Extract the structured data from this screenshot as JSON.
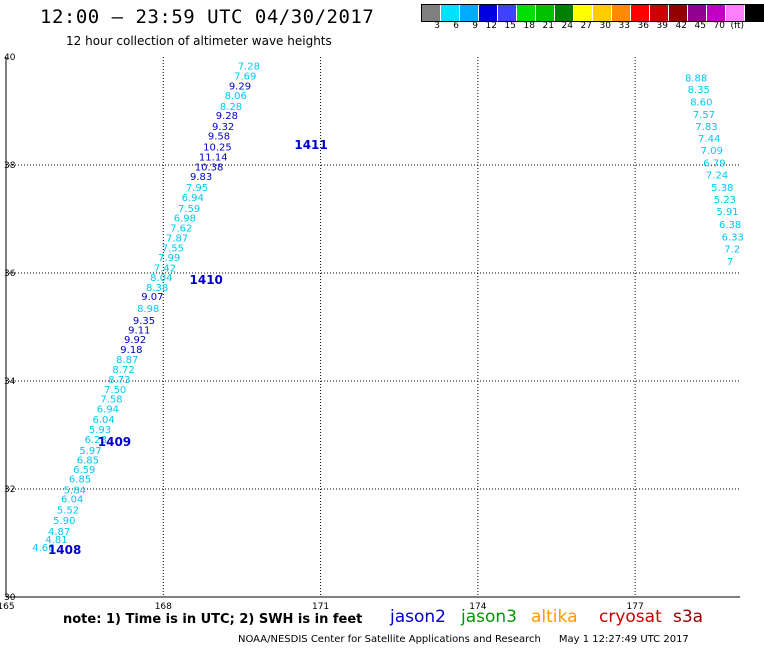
{
  "header": {
    "title": "12:00 – 23:59 UTC 04/30/2017",
    "subtitle": "12 hour collection of altimeter wave heights"
  },
  "legend": {
    "colors": [
      "#808080",
      "#00e0ff",
      "#00aaff",
      "#0000e0",
      "#4040ff",
      "#00e000",
      "#00c000",
      "#008000",
      "#ffff00",
      "#ffcc00",
      "#ff8c00",
      "#ff0000",
      "#d00000",
      "#900000",
      "#900090",
      "#c000c0",
      "#ff80ff",
      "#000000"
    ],
    "labels": [
      "3",
      "6",
      "9",
      "12",
      "15",
      "18",
      "21",
      "24",
      "27",
      "30",
      "33",
      "36",
      "39",
      "42",
      "45",
      "70",
      "(ft)"
    ]
  },
  "chart_data": {
    "type": "map",
    "x_ticks": [
      "165",
      "168",
      "171",
      "174",
      "177"
    ],
    "y_ticks": [
      "30",
      "32",
      "34",
      "36",
      "38",
      "40"
    ],
    "xlim": [
      165,
      179
    ],
    "ylim": [
      30,
      40
    ],
    "passes": [
      {
        "time": "1408",
        "lon": 165.8,
        "lat": 30.8
      },
      {
        "time": "1409",
        "lon": 166.75,
        "lat": 32.8
      },
      {
        "time": "1410",
        "lon": 168.5,
        "lat": 35.8
      },
      {
        "time": "1411",
        "lon": 170.5,
        "lat": 38.3
      }
    ],
    "track1": [
      {
        "lon": 165.5,
        "lat": 30.85,
        "v": "4.66"
      },
      {
        "lon": 165.75,
        "lat": 31.0,
        "v": "4.81"
      },
      {
        "lon": 165.8,
        "lat": 31.15,
        "v": "4.87"
      },
      {
        "lon": 165.9,
        "lat": 31.35,
        "v": "5.90"
      },
      {
        "lon": 165.97,
        "lat": 31.55,
        "v": "5.52"
      },
      {
        "lon": 166.05,
        "lat": 31.75,
        "v": "6.04"
      },
      {
        "lon": 166.1,
        "lat": 31.92,
        "v": "5.84"
      },
      {
        "lon": 166.2,
        "lat": 32.12,
        "v": "6.85"
      },
      {
        "lon": 166.28,
        "lat": 32.3,
        "v": "6.59"
      },
      {
        "lon": 166.35,
        "lat": 32.47,
        "v": "6.85"
      },
      {
        "lon": 166.4,
        "lat": 32.65,
        "v": "5.97"
      },
      {
        "lon": 166.5,
        "lat": 32.85,
        "v": "6.28"
      },
      {
        "lon": 166.58,
        "lat": 33.04,
        "v": "5.93"
      },
      {
        "lon": 166.65,
        "lat": 33.22,
        "v": "6.04"
      },
      {
        "lon": 166.73,
        "lat": 33.42,
        "v": "6.94"
      },
      {
        "lon": 166.8,
        "lat": 33.6,
        "v": "7.58"
      },
      {
        "lon": 166.87,
        "lat": 33.78,
        "v": "7.50"
      },
      {
        "lon": 166.95,
        "lat": 33.96,
        "v": "8.73"
      },
      {
        "lon": 167.03,
        "lat": 34.15,
        "v": "8.72"
      },
      {
        "lon": 167.1,
        "lat": 34.33,
        "v": "8.87"
      },
      {
        "lon": 167.18,
        "lat": 34.52,
        "v": "9.18"
      },
      {
        "lon": 167.25,
        "lat": 34.7,
        "v": "9.92"
      },
      {
        "lon": 167.33,
        "lat": 34.88,
        "v": "9.11"
      },
      {
        "lon": 167.42,
        "lat": 35.06,
        "v": "9.35"
      },
      {
        "lon": 167.5,
        "lat": 35.28,
        "v": "8.98"
      },
      {
        "lon": 167.58,
        "lat": 35.5,
        "v": "9.07"
      },
      {
        "lon": 167.67,
        "lat": 35.67,
        "v": "8.38"
      },
      {
        "lon": 167.75,
        "lat": 35.85,
        "v": "8.04"
      },
      {
        "lon": 167.82,
        "lat": 36.03,
        "v": "7.42"
      },
      {
        "lon": 167.9,
        "lat": 36.22,
        "v": "7.99"
      },
      {
        "lon": 167.97,
        "lat": 36.4,
        "v": "7.55"
      },
      {
        "lon": 168.05,
        "lat": 36.58,
        "v": "7.87"
      },
      {
        "lon": 168.13,
        "lat": 36.77,
        "v": "7.62"
      },
      {
        "lon": 168.2,
        "lat": 36.95,
        "v": "6.98"
      },
      {
        "lon": 168.28,
        "lat": 37.13,
        "v": "7.59"
      },
      {
        "lon": 168.35,
        "lat": 37.33,
        "v": "6.94"
      },
      {
        "lon": 168.43,
        "lat": 37.52,
        "v": "7.95"
      },
      {
        "lon": 168.51,
        "lat": 37.72,
        "v": "9.83"
      },
      {
        "lon": 168.6,
        "lat": 37.9,
        "v": "10.38"
      },
      {
        "lon": 168.68,
        "lat": 38.08,
        "v": "11.14"
      },
      {
        "lon": 168.76,
        "lat": 38.27,
        "v": "10.25"
      },
      {
        "lon": 168.85,
        "lat": 38.47,
        "v": "9.58"
      },
      {
        "lon": 168.93,
        "lat": 38.65,
        "v": "9.32"
      },
      {
        "lon": 169.0,
        "lat": 38.85,
        "v": "9.28"
      },
      {
        "lon": 169.08,
        "lat": 39.02,
        "v": "8.28"
      },
      {
        "lon": 169.17,
        "lat": 39.22,
        "v": "8.06"
      },
      {
        "lon": 169.25,
        "lat": 39.4,
        "v": "9.29"
      },
      {
        "lon": 169.35,
        "lat": 39.58,
        "v": "7.69"
      },
      {
        "lon": 169.42,
        "lat": 39.77,
        "v": "7.28"
      }
    ],
    "track2": [
      {
        "lon": 177.95,
        "lat": 39.55,
        "v": "8.88"
      },
      {
        "lon": 178.0,
        "lat": 39.33,
        "v": "8.35"
      },
      {
        "lon": 178.05,
        "lat": 39.1,
        "v": "8.60"
      },
      {
        "lon": 178.1,
        "lat": 38.87,
        "v": "7.57"
      },
      {
        "lon": 178.15,
        "lat": 38.65,
        "v": "7.83"
      },
      {
        "lon": 178.2,
        "lat": 38.43,
        "v": "7.44"
      },
      {
        "lon": 178.25,
        "lat": 38.2,
        "v": "7.09"
      },
      {
        "lon": 178.3,
        "lat": 37.97,
        "v": "6.79"
      },
      {
        "lon": 178.35,
        "lat": 37.75,
        "v": "7.24"
      },
      {
        "lon": 178.45,
        "lat": 37.52,
        "v": "5.38"
      },
      {
        "lon": 178.5,
        "lat": 37.3,
        "v": "5.23"
      },
      {
        "lon": 178.55,
        "lat": 37.07,
        "v": "5.91"
      },
      {
        "lon": 178.6,
        "lat": 36.83,
        "v": "6.38"
      },
      {
        "lon": 178.65,
        "lat": 36.6,
        "v": "6.33"
      },
      {
        "lon": 178.7,
        "lat": 36.38,
        "v": "7.2"
      },
      {
        "lon": 178.75,
        "lat": 36.15,
        "v": "7"
      }
    ]
  },
  "note": "note:  1) Time is in UTC;  2) SWH is in feet",
  "missions": [
    {
      "label": "jason2",
      "color": "#0000cc"
    },
    {
      "label": "jason3",
      "color": "#009900"
    },
    {
      "label": "altika",
      "color": "#ff9900"
    },
    {
      "label": "cryosat",
      "color": "#cc0000"
    },
    {
      "label": "s3a",
      "color": "#990000"
    }
  ],
  "footer": {
    "credit": "NOAA/NESDIS Center for Satellite Applications and Research",
    "date": "May  1 12:27:49 UTC 2017"
  }
}
